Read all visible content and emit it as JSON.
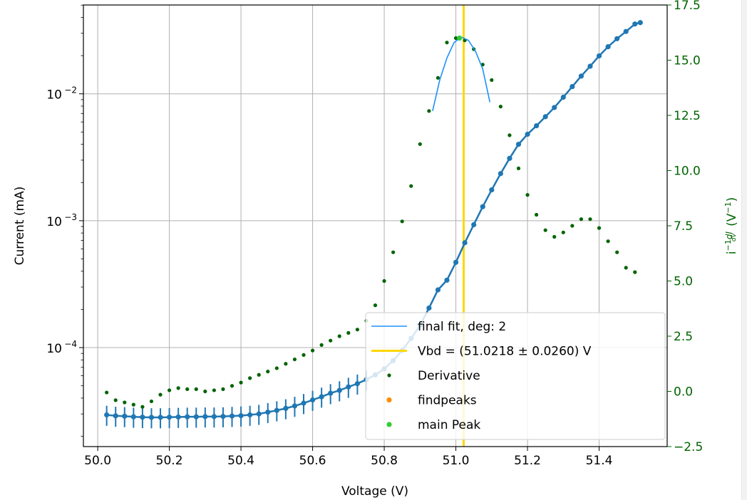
{
  "chart_data": {
    "type": "scatter",
    "xlabel": "Voltage (V)",
    "ylabel_left": "Current (mA)",
    "ylabel_right": "i⁻¹dI/dV (V⁻¹)",
    "xlim": [
      49.96,
      51.59
    ],
    "ylim_left_log10": [
      -4.78,
      -1.3
    ],
    "ylim_right": [
      -2.5,
      17.5
    ],
    "left_scale": "log",
    "grid": true,
    "legend_position": "lower-right",
    "x_ticks": [
      "50.0",
      "50.2",
      "50.4",
      "50.6",
      "50.8",
      "51.0",
      "51.2",
      "51.4"
    ],
    "x_tick_values": [
      50.0,
      50.2,
      50.4,
      50.6,
      50.8,
      51.0,
      51.2,
      51.4
    ],
    "y_left_ticks": [
      {
        "base": "10",
        "exp": "−2",
        "value": 0.01
      },
      {
        "base": "10",
        "exp": "−3",
        "value": 0.001
      },
      {
        "base": "10",
        "exp": "−4",
        "value": 0.0001
      }
    ],
    "y_right_ticks": [
      "−2.5",
      "0.0",
      "2.5",
      "5.0",
      "7.5",
      "10.0",
      "12.5",
      "15.0",
      "17.5"
    ],
    "y_right_tick_values": [
      -2.5,
      0.0,
      2.5,
      5.0,
      7.5,
      10.0,
      12.5,
      15.0,
      17.5
    ],
    "current": {
      "x": [
        50.025,
        50.05,
        50.075,
        50.1,
        50.125,
        50.15,
        50.175,
        50.2,
        50.225,
        50.25,
        50.275,
        50.3,
        50.325,
        50.35,
        50.375,
        50.4,
        50.425,
        50.45,
        50.475,
        50.5,
        50.525,
        50.55,
        50.575,
        50.6,
        50.625,
        50.65,
        50.675,
        50.7,
        50.725,
        50.75,
        50.775,
        50.8,
        50.825,
        50.85,
        50.875,
        50.9,
        50.925,
        50.95,
        50.975,
        51.0,
        51.025,
        51.05,
        51.075,
        51.1,
        51.125,
        51.15,
        51.175,
        51.2,
        51.225,
        51.25,
        51.275,
        51.3,
        51.325,
        51.35,
        51.375,
        51.4,
        51.425,
        51.45,
        51.475,
        51.5,
        51.515
      ],
      "y": [
        2.95e-05,
        2.9e-05,
        2.88e-05,
        2.85e-05,
        2.83e-05,
        2.82e-05,
        2.82e-05,
        2.83e-05,
        2.84e-05,
        2.85e-05,
        2.85e-05,
        2.86e-05,
        2.86e-05,
        2.87e-05,
        2.89e-05,
        2.91e-05,
        2.95e-05,
        3e-05,
        3.1e-05,
        3.2e-05,
        3.32e-05,
        3.47e-05,
        3.65e-05,
        3.87e-05,
        4.1e-05,
        4.37e-05,
        4.6e-05,
        4.9e-05,
        5.2e-05,
        5.6e-05,
        6.1e-05,
        6.8e-05,
        7.9e-05,
        9.5e-05,
        0.000118,
        0.00015,
        0.000205,
        0.000285,
        0.00034,
        0.00047,
        0.00067,
        0.00093,
        0.00129,
        0.00175,
        0.00235,
        0.0031,
        0.004,
        0.0048,
        0.0056,
        0.0066,
        0.0078,
        0.0094,
        0.0114,
        0.0138,
        0.0165,
        0.0199,
        0.0235,
        0.0272,
        0.031,
        0.0355,
        0.0364
      ],
      "error_x_range": [
        50.025,
        50.76
      ]
    },
    "final_fit": {
      "name": "final fit, deg: 2",
      "color": "#1e90ff",
      "x": [
        50.935,
        50.955,
        50.975,
        50.995,
        51.015,
        51.035,
        51.055,
        51.075,
        51.095
      ],
      "y": [
        12.7,
        14.1,
        15.1,
        15.8,
        16.05,
        15.9,
        15.4,
        14.6,
        13.1
      ]
    },
    "vbd": {
      "name": "Vbd = (51.0218 ± 0.0260) V",
      "x": 51.0218,
      "color": "#ffd700"
    },
    "derivative": {
      "name": "Derivative",
      "color": "#006400",
      "x": [
        50.025,
        50.05,
        50.075,
        50.1,
        50.125,
        50.15,
        50.175,
        50.2,
        50.225,
        50.25,
        50.275,
        50.3,
        50.325,
        50.35,
        50.375,
        50.4,
        50.425,
        50.45,
        50.475,
        50.5,
        50.525,
        50.55,
        50.575,
        50.6,
        50.625,
        50.65,
        50.675,
        50.7,
        50.725,
        50.75,
        50.775,
        50.8,
        50.825,
        50.85,
        50.875,
        50.9,
        50.925,
        50.95,
        50.975,
        51.0,
        51.025,
        51.05,
        51.075,
        51.1,
        51.125,
        51.15,
        51.175,
        51.2,
        51.225,
        51.25,
        51.275,
        51.3,
        51.325,
        51.35,
        51.375,
        51.4,
        51.425,
        51.45,
        51.475,
        51.5,
        51.515
      ],
      "y": [
        -0.05,
        -0.4,
        -0.5,
        -0.6,
        -0.7,
        -0.45,
        -0.15,
        0.05,
        0.15,
        0.1,
        0.1,
        0.0,
        0.05,
        0.1,
        0.25,
        0.4,
        0.6,
        0.75,
        0.9,
        1.05,
        1.25,
        1.45,
        1.65,
        1.85,
        2.1,
        2.3,
        2.5,
        2.65,
        2.8,
        3.2,
        3.9,
        5.0,
        6.3,
        7.7,
        9.3,
        11.2,
        12.7,
        14.2,
        15.8,
        16.0,
        15.9,
        15.5,
        14.8,
        14.1,
        12.9,
        11.6,
        10.1,
        8.9,
        8.0,
        7.3,
        7.0,
        7.2,
        7.5,
        7.8,
        7.8,
        7.4,
        6.8,
        6.3,
        5.6,
        5.4,
        5.4
      ],
      "display_x": [
        50.025,
        50.05,
        50.075,
        50.1,
        50.125,
        50.15,
        50.175,
        50.2,
        50.225,
        50.25,
        50.275,
        50.3,
        50.325,
        50.35,
        50.375,
        50.4,
        50.425,
        50.45,
        50.475,
        50.5,
        50.525,
        50.55,
        50.575,
        50.6,
        50.625,
        50.65,
        50.675,
        50.7,
        50.725,
        50.75,
        50.775,
        50.8,
        50.825,
        50.85,
        50.875,
        50.9,
        50.925,
        50.95,
        50.975,
        51.0,
        51.025,
        51.05,
        51.075,
        51.1,
        51.125,
        51.15,
        51.175,
        51.2,
        51.225,
        51.25,
        51.275,
        51.3,
        51.325,
        51.35,
        51.375,
        51.4,
        51.425,
        51.45,
        51.475,
        51.5
      ]
    },
    "findpeaks": {
      "name": "findpeaks",
      "color": "#ff8c00"
    },
    "main_peak": {
      "name": "main Peak",
      "color": "#32cd32",
      "x": 51.01,
      "y": 16.0
    },
    "legend": [
      {
        "label": "final fit, deg: 2",
        "kind": "line",
        "color": "#1e90ff"
      },
      {
        "label": "Vbd = (51.0218 ± 0.0260) V",
        "kind": "line-thick",
        "color": "#ffd700"
      },
      {
        "label": "Derivative",
        "kind": "dot-small",
        "color": "#006400"
      },
      {
        "label": "findpeaks",
        "kind": "dot",
        "color": "#ff8c00"
      },
      {
        "label": "main Peak",
        "kind": "dot",
        "color": "#32cd32"
      }
    ]
  }
}
